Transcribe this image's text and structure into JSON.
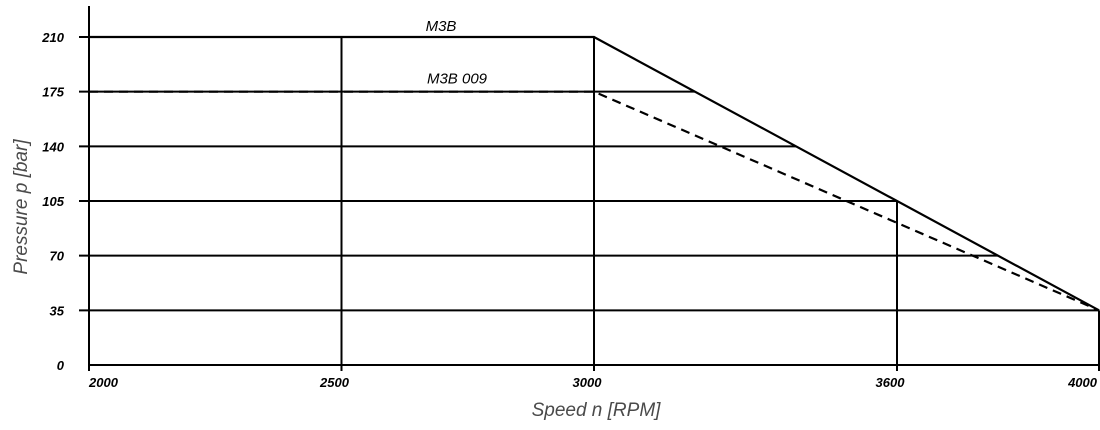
{
  "chart_data": {
    "type": "line",
    "xlabel": "Speed n [RPM]",
    "ylabel": "Pressure p [bar]",
    "xlim": [
      2000,
      4000
    ],
    "ylim": [
      0,
      210
    ],
    "x_ticks": [
      2000,
      2500,
      3000,
      3600,
      4000
    ],
    "y_ticks": [
      0,
      35,
      70,
      105,
      140,
      175,
      210
    ],
    "x_tick_labels": [
      "2000",
      "2500",
      "3000",
      "3600",
      "4000"
    ],
    "y_tick_labels": [
      "0",
      "35",
      "70",
      "105",
      "140",
      "175",
      "210"
    ],
    "grid": true,
    "series": [
      {
        "name": "M3B",
        "style": "solid",
        "x": [
          2000,
          3000,
          4000
        ],
        "y": [
          210,
          210,
          35
        ]
      },
      {
        "name": "M3B 009",
        "style": "dashed",
        "x": [
          2000,
          3000,
          4000
        ],
        "y": [
          175,
          175,
          35
        ]
      }
    ]
  }
}
